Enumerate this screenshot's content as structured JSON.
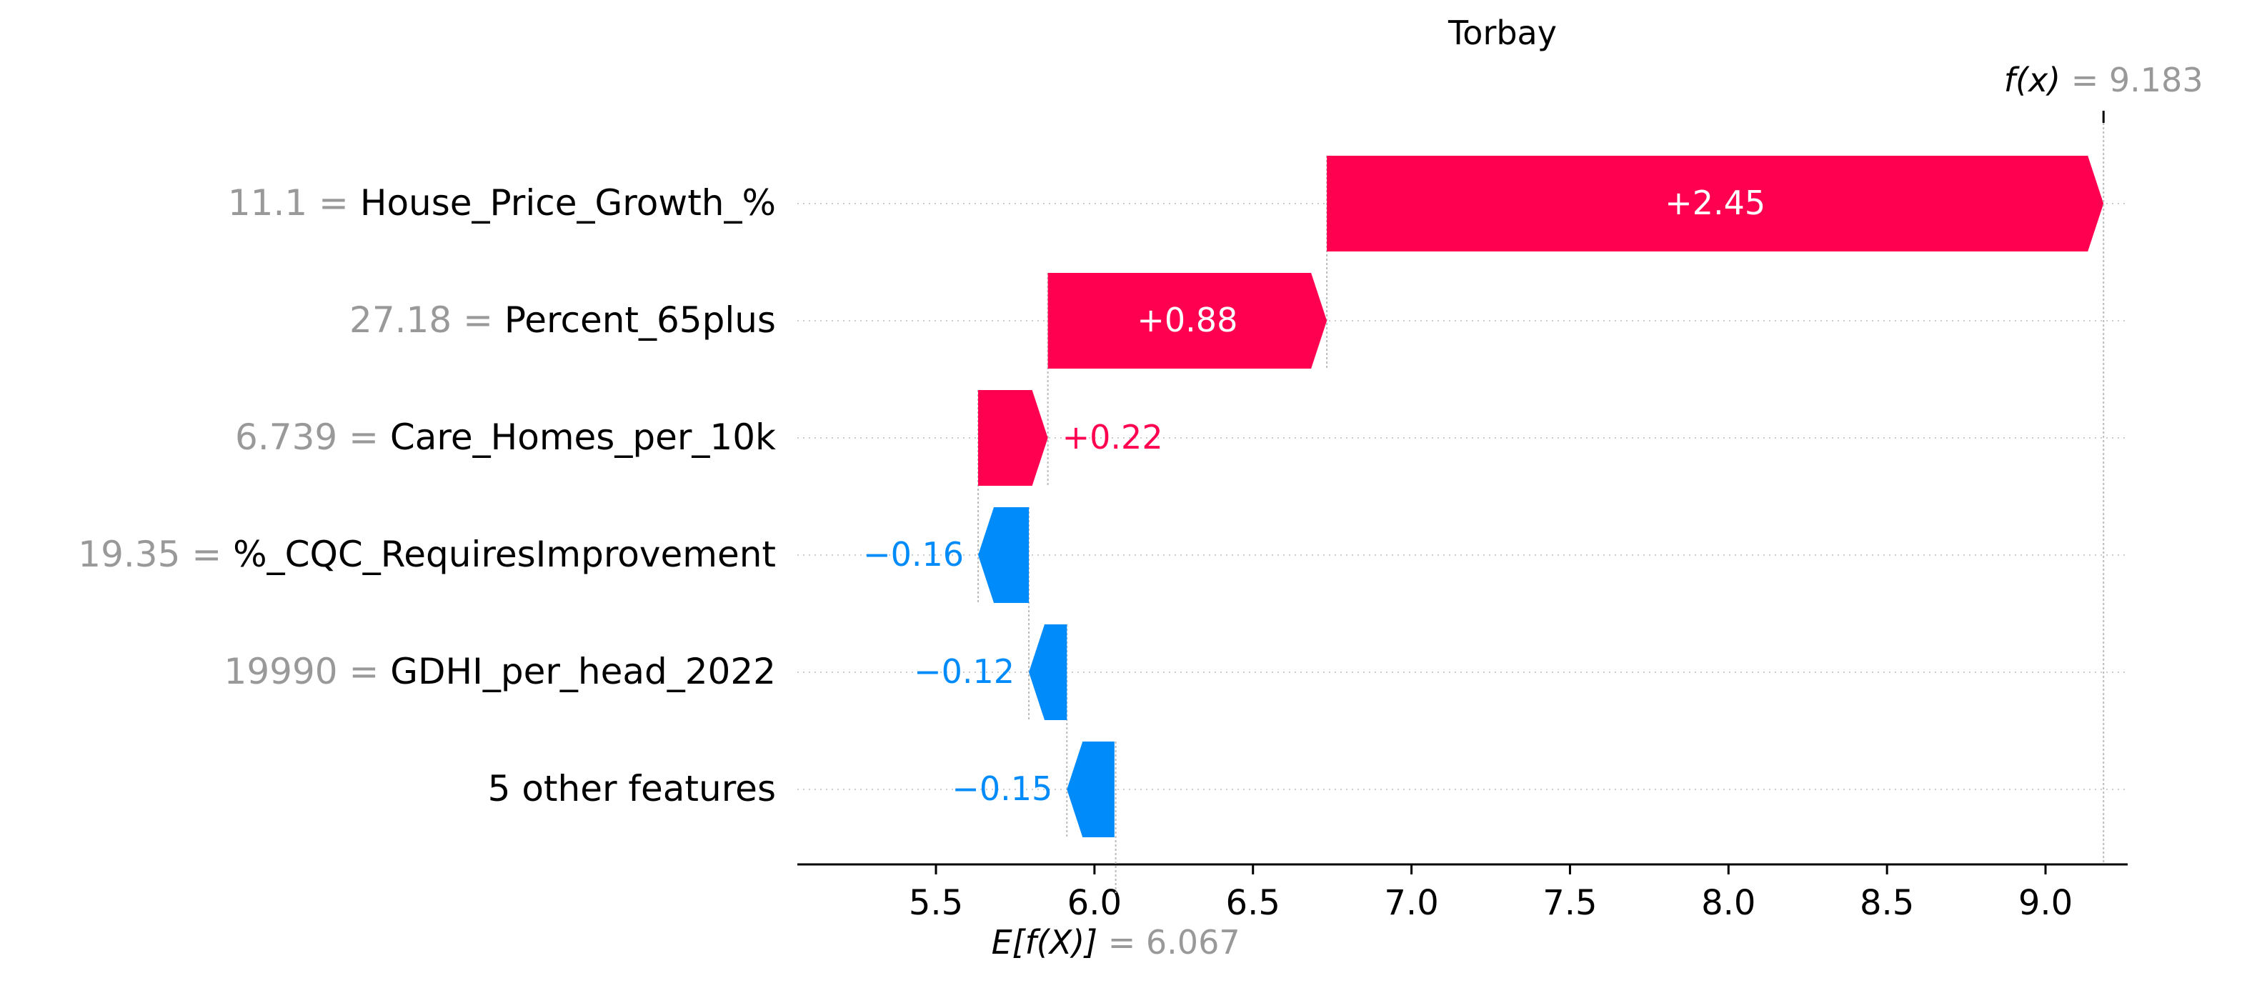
{
  "chart_data": {
    "type": "waterfall",
    "title": "Torbay",
    "fx_label": "f(x)",
    "fx_value": "= 9.183",
    "fx": 9.183,
    "base_label": "E[f(X)]",
    "base_value": "= 6.067",
    "base": 6.067,
    "xlim": [
      5.07,
      9.42
    ],
    "ticks": [
      5.5,
      6.0,
      6.5,
      7.0,
      7.5,
      8.0,
      8.5,
      9.0
    ],
    "tick_labels": [
      "5.5",
      "6.0",
      "6.5",
      "7.0",
      "7.5",
      "8.0",
      "8.5",
      "9.0"
    ],
    "colors": {
      "positive": "#ff0051",
      "negative": "#008bfb",
      "value_text": "#999999"
    },
    "features": [
      {
        "value": "11.1 =",
        "name": "House_Price_Growth_%",
        "contribution": 2.45,
        "label": "+2.45"
      },
      {
        "value": "27.18 =",
        "name": "Percent_65plus",
        "contribution": 0.88,
        "label": "+0.88"
      },
      {
        "value": "6.739 =",
        "name": "Care_Homes_per_10k",
        "contribution": 0.22,
        "label": "+0.22"
      },
      {
        "value": "19.35 =",
        "name": "%_CQC_RequiresImprovement",
        "contribution": -0.16,
        "label": "−0.16"
      },
      {
        "value": "19990 =",
        "name": "GDHI_per_head_2022",
        "contribution": -0.12,
        "label": "−0.12"
      },
      {
        "value": "",
        "name": "5 other features",
        "contribution": -0.15,
        "label": "−0.15"
      }
    ]
  }
}
